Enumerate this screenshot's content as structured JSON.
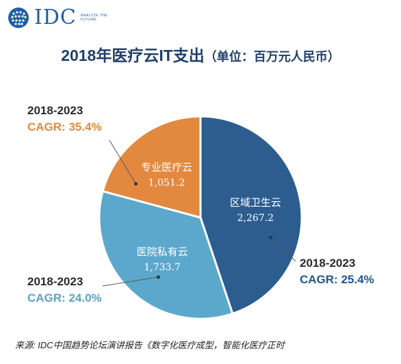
{
  "logo": {
    "text": "IDC",
    "tagline": "ANALYZE THE FUTURE"
  },
  "title": {
    "main": "2018年医疗云IT支出",
    "unit": "（单位：百万元人民币）"
  },
  "chart_data": {
    "type": "pie",
    "title": "2018年医疗云IT支出（单位：百万元人民币）",
    "slices": [
      {
        "label": "区域卫生云",
        "value": 2267.2,
        "value_text": "2,267.2",
        "color": "#2d5d8f",
        "cagr_period": "2018-2023",
        "cagr": "CAGR: 25.4%"
      },
      {
        "label": "医院私有云",
        "value": 1733.7,
        "value_text": "1,733.7",
        "color": "#5ca8cc",
        "cagr_period": "2018-2023",
        "cagr": "CAGR: 24.0%"
      },
      {
        "label": "专业医疗云",
        "value": 1051.2,
        "value_text": "1,051.2",
        "color": "#e3893f",
        "cagr_period": "2018-2023",
        "cagr": "CAGR: 35.4%"
      }
    ]
  },
  "source": "来源: IDC中国趋势论坛演讲报告《数字化医疗成型，智能化医疗正时"
}
